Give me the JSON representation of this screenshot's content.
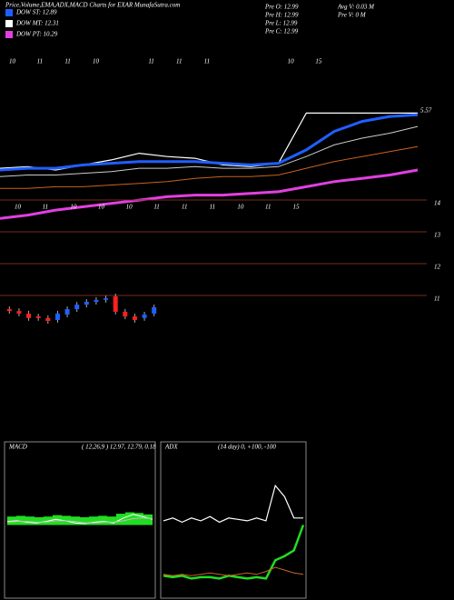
{
  "header": {
    "title": "Price,Volume,EMA,ADX,MACD Charts for EXAR MunafaSutra.com",
    "legend": [
      {
        "label": "DOW ST: 12.89",
        "color": "#1f5fff"
      },
      {
        "label": "DOW MT: 12.31",
        "color": "#ffffff"
      },
      {
        "label": "DOW PT: 10.29",
        "color": "#e040e0"
      }
    ],
    "info": [
      "Pre  O: 12.99",
      "Pre  H: 12.99",
      "Pre  L: 12.99",
      "Pre  C: 12.99",
      "Avg V: 0.03 M",
      "Pre  V: 0  M"
    ]
  },
  "chart_data": [
    {
      "type": "line",
      "categories": [
        "10",
        "11",
        "11",
        "10",
        null,
        "11",
        "11",
        "11",
        null,
        null,
        "10",
        "15",
        null,
        null,
        null,
        null
      ],
      "categories_lower": [
        "10",
        "11",
        "10",
        "10",
        "10",
        "11",
        "11",
        "11",
        "10",
        "11",
        "15",
        null,
        null,
        null,
        null,
        null
      ],
      "annotation": "5.57",
      "ylim": [
        0,
        100
      ],
      "series": [
        {
          "color": "#ffffff",
          "width": 1.2,
          "values": [
            32,
            33,
            31,
            34,
            37,
            41,
            39,
            38,
            34,
            33,
            35,
            65,
            65,
            65,
            65,
            65
          ]
        },
        {
          "color": "#1f5fff",
          "width": 3,
          "values": [
            31,
            32,
            32,
            34,
            35,
            36,
            36,
            36,
            35,
            34,
            35,
            43,
            54,
            60,
            63,
            64
          ]
        },
        {
          "color": "#cccccc",
          "width": 1,
          "values": [
            27,
            28,
            28,
            29,
            30,
            32,
            32,
            33,
            32,
            32,
            33,
            39,
            46,
            50,
            53,
            57
          ]
        },
        {
          "color": "#c8641e",
          "width": 1,
          "values": [
            20,
            20,
            21,
            21,
            22,
            23,
            24,
            26,
            27,
            27,
            28,
            32,
            36,
            39,
            42,
            45
          ]
        },
        {
          "color": "#e040e0",
          "width": 3,
          "values": [
            2,
            4,
            7,
            9,
            11,
            13,
            15,
            16,
            16,
            17,
            18,
            21,
            24,
            26,
            28,
            31
          ]
        }
      ]
    },
    {
      "type": "candlestick",
      "ylim": [
        10,
        14
      ],
      "yticks": [
        11,
        12,
        13,
        14
      ],
      "grid_color": "#7a2a1a",
      "up_color": "#2060ff",
      "down_color": "#ff2020",
      "open": [
        10.57,
        10.51,
        10.43,
        10.34,
        10.29,
        10.23,
        10.4,
        10.57,
        10.71,
        10.8,
        10.86,
        10.97,
        10.49,
        10.34,
        10.29,
        10.43
      ],
      "close": [
        10.51,
        10.43,
        10.29,
        10.29,
        10.2,
        10.43,
        10.57,
        10.71,
        10.8,
        10.86,
        10.91,
        10.49,
        10.34,
        10.23,
        10.4,
        10.63
      ]
    },
    {
      "type": "bar",
      "title": "MACD",
      "subtitle": "( 12,26,9 ) 12.97, 12.79, 0.18",
      "ylim": [
        -1,
        1
      ],
      "color": "#22dd22",
      "values": [
        0.12,
        0.13,
        0.12,
        0.11,
        0.12,
        0.14,
        0.13,
        0.12,
        0.11,
        0.12,
        0.13,
        0.12,
        0.16,
        0.18,
        0.17,
        0.15
      ],
      "series": [
        {
          "color": "#ffffff",
          "width": 1,
          "values": [
            0.05,
            0.06,
            0.04,
            0.03,
            0.05,
            0.08,
            0.06,
            0.03,
            0.02,
            0.04,
            0.05,
            0.03,
            0.1,
            0.15,
            0.12,
            0.08
          ]
        },
        {
          "color": "#bbbbbb",
          "width": 1,
          "values": [
            0.04,
            0.05,
            0.05,
            0.04,
            0.04,
            0.06,
            0.06,
            0.05,
            0.03,
            0.03,
            0.04,
            0.04,
            0.06,
            0.09,
            0.1,
            0.09
          ]
        }
      ]
    },
    {
      "type": "line",
      "title": "ADX",
      "subtitle": "(14 day) 0, +100, -100",
      "ylim": [
        0,
        100
      ],
      "series": [
        {
          "color": "#ffffff",
          "width": 1.2,
          "values": [
            53,
            55,
            52,
            55,
            53,
            56,
            52,
            55,
            54,
            53,
            55,
            53,
            78,
            70,
            55,
            55
          ]
        },
        {
          "color": "#22dd22",
          "width": 2.5,
          "values": [
            14,
            13,
            14,
            12,
            13,
            13,
            12,
            14,
            13,
            12,
            13,
            12,
            25,
            28,
            32,
            50
          ]
        },
        {
          "color": "#c8641e",
          "width": 1,
          "values": [
            15,
            14,
            15,
            14,
            15,
            16,
            15,
            14,
            15,
            16,
            15,
            17,
            20,
            18,
            16,
            15
          ]
        }
      ]
    }
  ]
}
